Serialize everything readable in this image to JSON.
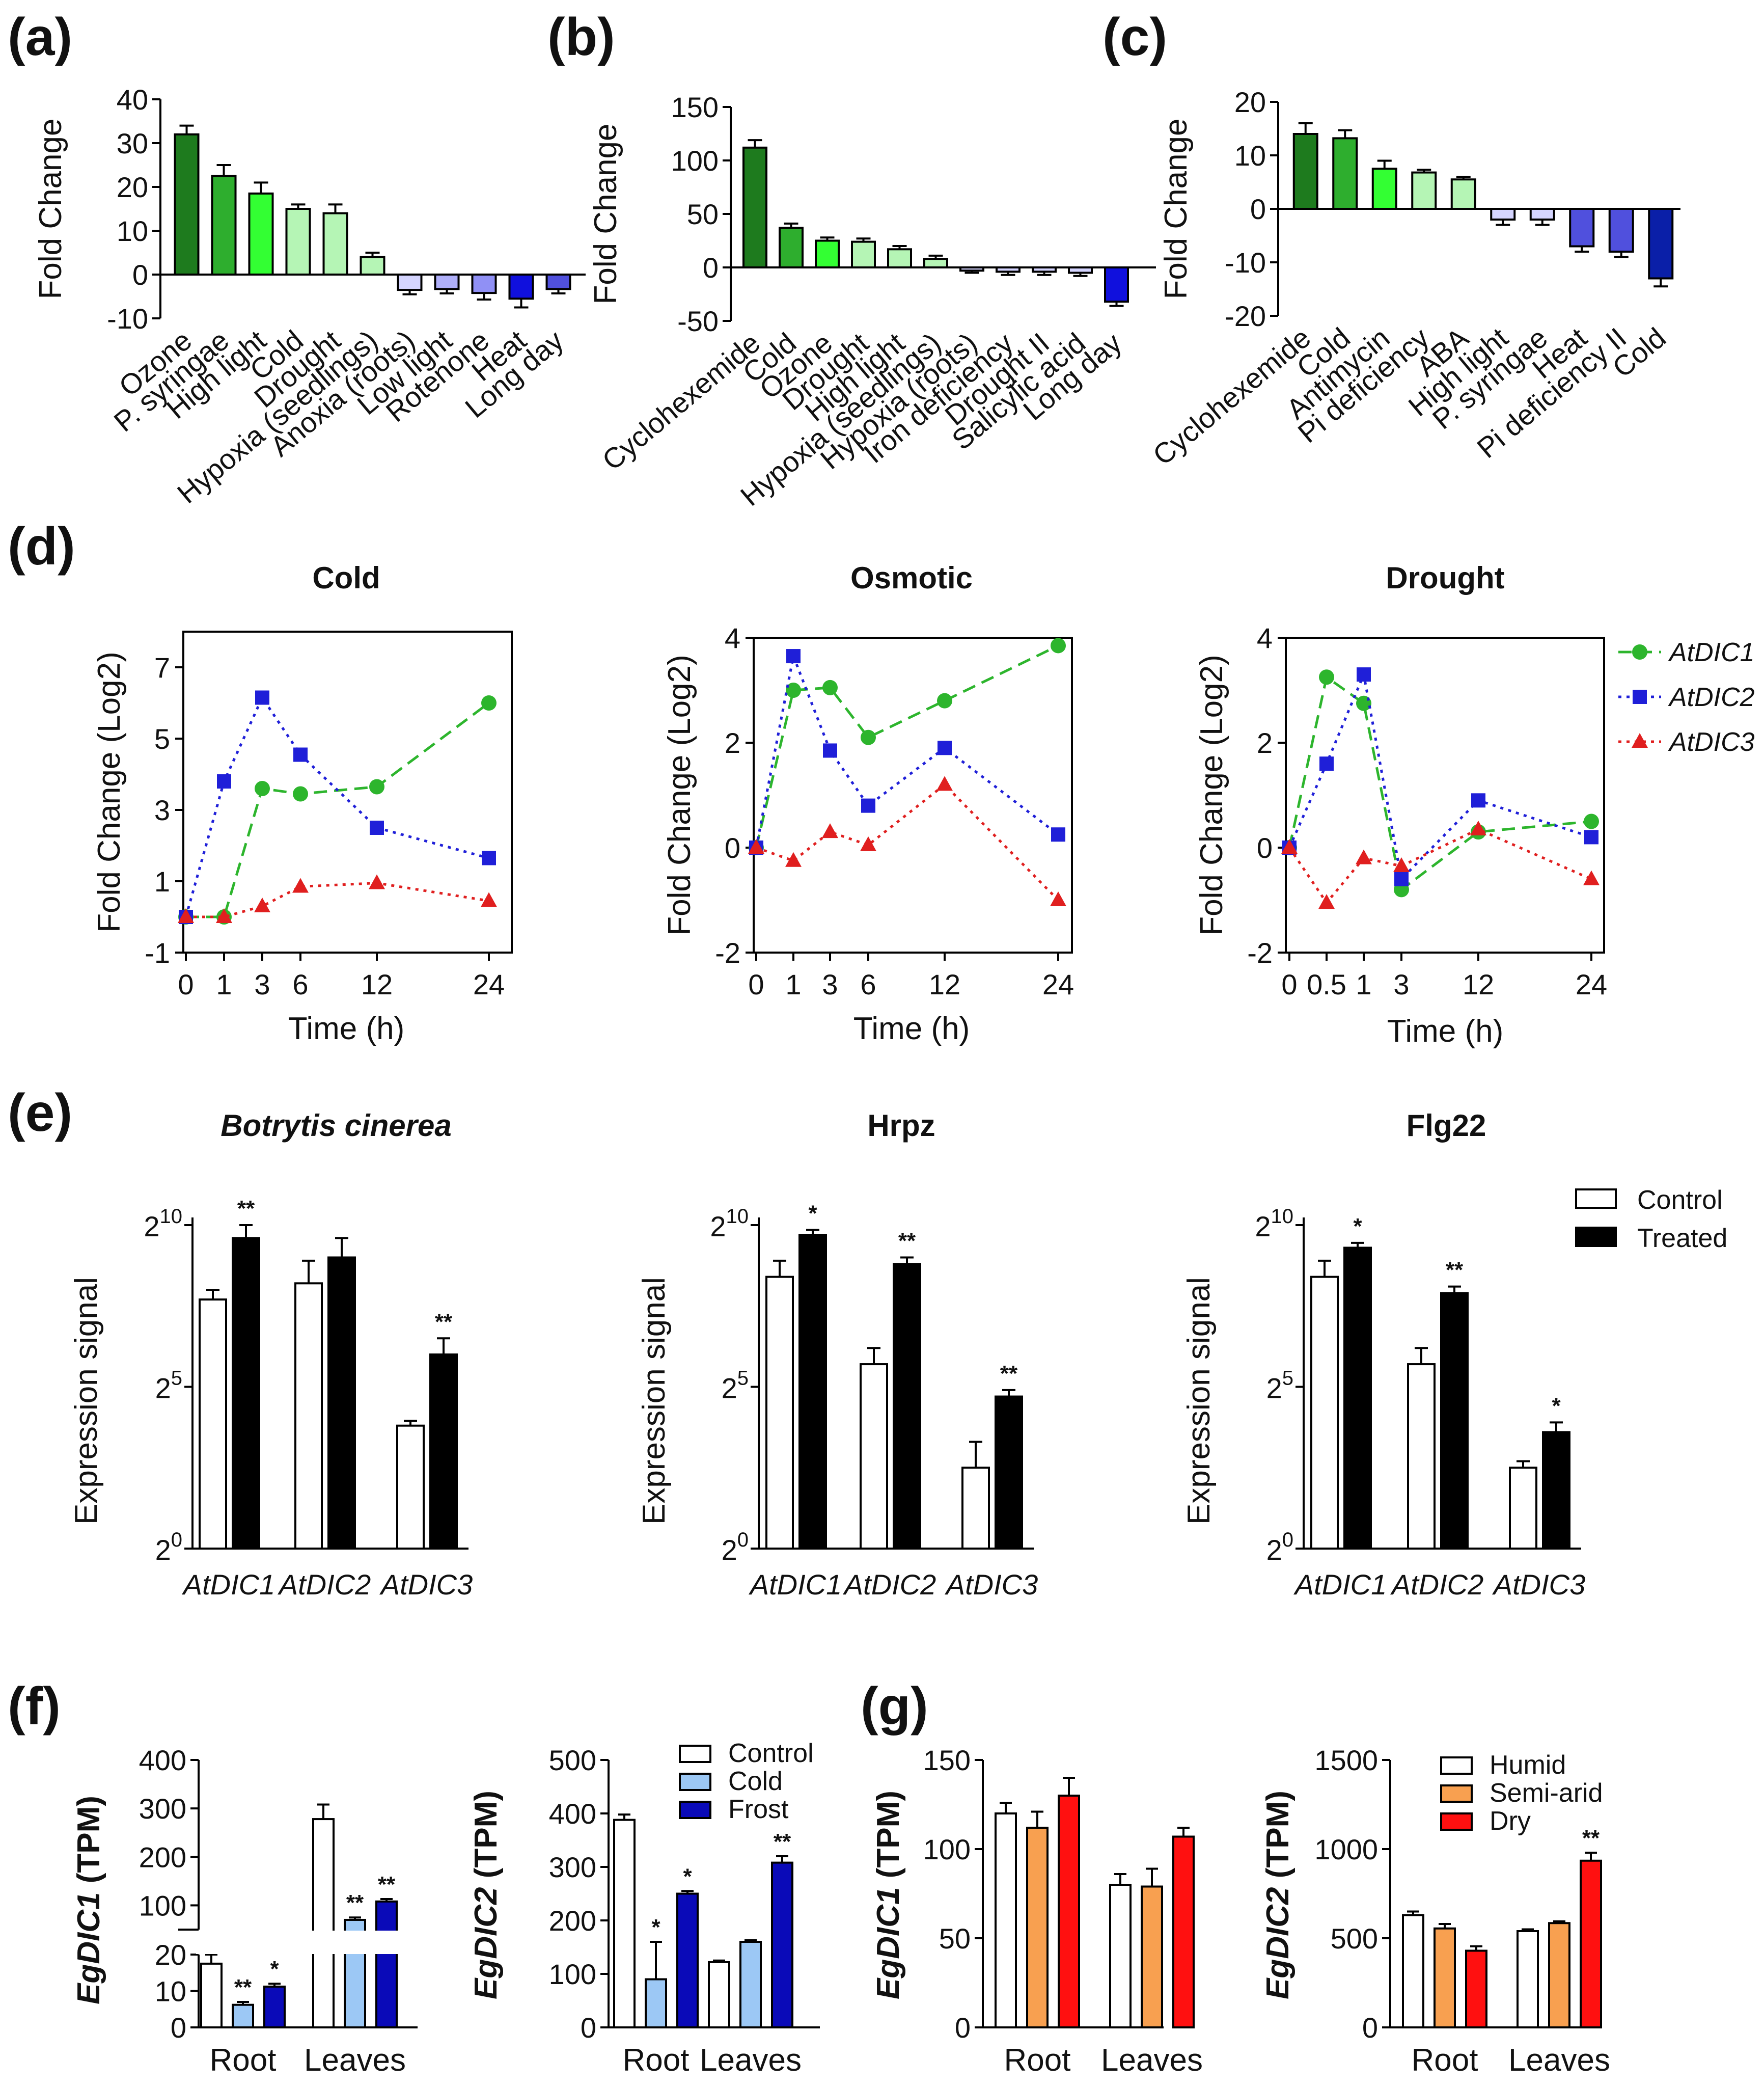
{
  "panel_labels": [
    "(a)",
    "(b)",
    "(c)",
    "(d)",
    "(e)",
    "(f)",
    "(g)"
  ],
  "colors": {
    "dark_green": "#1E7B1E",
    "mid_green": "#2EAE2E",
    "bright_green": "#33FF33",
    "light_green": "#B5F5B5",
    "lavender": "#D5D5FF",
    "light_blue": "#9090F5",
    "mid_blue": "#5050DD",
    "blue": "#1010DD",
    "dark_blue": "#0A1FA8",
    "control_blue": "#9CC8F5",
    "frost_blue": "#0A0AB8",
    "orange": "#F8A050",
    "red": "#FF1010",
    "atdic1_line": "#2DB52D",
    "atdic2_line": "#1F1FD8",
    "atdic3_line": "#E01F1F"
  },
  "chart_data": [
    {
      "id": "a",
      "type": "bar",
      "ylabel": "Fold Change",
      "ylim": [
        -10,
        40
      ],
      "yticks": [
        -10,
        0,
        10,
        20,
        30,
        40
      ],
      "categories": [
        "Ozone",
        "P. syringae",
        "High light",
        "Cold",
        "Drought",
        "Hypoxia (seedlings)",
        "Anoxia (roots)",
        "Low light",
        "Rotenone",
        "Heat",
        "Long day"
      ],
      "values": [
        32,
        22.5,
        18.5,
        15,
        14,
        4,
        -3.5,
        -3.3,
        -4.2,
        -5.5,
        -3.3
      ],
      "errors": [
        2,
        2.5,
        2.5,
        1,
        2,
        1,
        1,
        1,
        1.5,
        2,
        1
      ],
      "bar_colors": [
        "#1E7B1E",
        "#2EAE2E",
        "#33FF33",
        "#B5F5B5",
        "#B5F5B5",
        "#B5F5B5",
        "#D5D5FF",
        "#B0B0FA",
        "#9090F5",
        "#1010DD",
        "#5050DD"
      ]
    },
    {
      "id": "b",
      "type": "bar",
      "ylabel": "Fold Change",
      "ylim": [
        -50,
        150
      ],
      "yticks": [
        -50,
        0,
        50,
        100,
        150
      ],
      "categories": [
        "Cyclohexemide",
        "Cold",
        "Ozone",
        "Drought",
        "High light",
        "Hypoxia (seedlings)",
        "Hypoxia (roots)",
        "Iron deficiency",
        "Drought II",
        "Salicylic acid",
        "Long day"
      ],
      "values": [
        112,
        37,
        25,
        24,
        17,
        8,
        -3,
        -4,
        -4,
        -5,
        -32
      ],
      "errors": [
        7,
        4,
        3,
        3,
        3,
        3,
        2,
        3,
        3,
        3,
        4
      ],
      "bar_colors": [
        "#1E7B1E",
        "#2EAE2E",
        "#33FF33",
        "#B5F5B5",
        "#B5F5B5",
        "#B5F5B5",
        "#D5D5FF",
        "#D5D5FF",
        "#D5D5FF",
        "#D5D5FF",
        "#1010DD"
      ]
    },
    {
      "id": "c",
      "type": "bar",
      "ylabel": "Fold Change",
      "ylim": [
        -20,
        20
      ],
      "yticks": [
        -20,
        -10,
        0,
        10,
        20
      ],
      "categories": [
        "Cyclohexemide",
        "Cold",
        "Antimycin",
        "Pi deficiency",
        "ABA",
        "High light",
        "P. syringae",
        "Heat",
        "Pi deficiency II",
        "Cold"
      ],
      "values": [
        14,
        13.2,
        7.5,
        6.8,
        5.5,
        -2,
        -2,
        -7,
        -8,
        -13
      ],
      "errors": [
        2,
        1.5,
        1.5,
        0.5,
        0.5,
        1,
        1,
        1,
        1,
        1.5
      ],
      "bar_colors": [
        "#1E7B1E",
        "#2EAE2E",
        "#33FF33",
        "#B5F5B5",
        "#B5F5B5",
        "#D5D5FF",
        "#D5D5FF",
        "#5050DD",
        "#5050DD",
        "#0A1FA8"
      ]
    },
    {
      "id": "d1",
      "type": "line",
      "title": "Cold",
      "xlabel": "Time (h)",
      "ylabel": "Fold Change (Log2)",
      "x": [
        0,
        1,
        3,
        6,
        12,
        24
      ],
      "xticks": [
        0,
        1,
        3,
        6,
        12,
        24
      ],
      "ylim": [
        -1,
        8
      ],
      "yticks": [
        -1,
        1,
        3,
        5,
        7
      ],
      "series": [
        {
          "name": "AtDIC1",
          "values": [
            0,
            0,
            3.6,
            3.45,
            3.65,
            6
          ]
        },
        {
          "name": "AtDIC2",
          "values": [
            0,
            3.8,
            6.15,
            4.55,
            2.5,
            1.65
          ]
        },
        {
          "name": "AtDIC3",
          "values": [
            0,
            0,
            0.3,
            0.85,
            0.95,
            0.45
          ]
        }
      ]
    },
    {
      "id": "d2",
      "type": "line",
      "title": "Osmotic",
      "xlabel": "Time (h)",
      "ylabel": "Fold Change (Log2)",
      "x": [
        0,
        1,
        3,
        6,
        12,
        24
      ],
      "xticks": [
        0,
        1,
        3,
        6,
        12,
        24
      ],
      "ylim": [
        -2,
        4
      ],
      "yticks": [
        -2,
        0,
        2,
        4
      ],
      "series": [
        {
          "name": "AtDIC1",
          "values": [
            0,
            3,
            3.05,
            2.1,
            2.8,
            3.85
          ]
        },
        {
          "name": "AtDIC2",
          "values": [
            0,
            3.65,
            1.85,
            0.8,
            1.9,
            0.25
          ]
        },
        {
          "name": "AtDIC3",
          "values": [
            0,
            -0.25,
            0.3,
            0.05,
            1.2,
            -1
          ]
        }
      ]
    },
    {
      "id": "d3",
      "type": "line",
      "title": "Drought",
      "xlabel": "Time (h)",
      "ylabel": "Fold Change (Log2)",
      "x": [
        0,
        0.5,
        1,
        3,
        12,
        24
      ],
      "xticks": [
        0,
        0.5,
        1,
        3,
        12,
        24
      ],
      "ylim": [
        -2,
        4
      ],
      "yticks": [
        -2,
        0,
        2,
        4
      ],
      "series": [
        {
          "name": "AtDIC1",
          "values": [
            0,
            3.25,
            2.75,
            -0.8,
            0.3,
            0.5
          ]
        },
        {
          "name": "AtDIC2",
          "values": [
            0,
            1.6,
            3.3,
            -0.6,
            0.9,
            0.2
          ]
        },
        {
          "name": "AtDIC3",
          "values": [
            0,
            -1.05,
            -0.2,
            -0.35,
            0.35,
            -0.6
          ]
        }
      ]
    },
    {
      "id": "e1",
      "type": "bar",
      "title": "Botrytis cinerea",
      "ylabel": "Expression signal",
      "ylim": [
        0,
        10
      ],
      "yticks_exp": [
        "0",
        "5",
        "10"
      ],
      "ytick_base": "2",
      "categories": [
        "AtDIC1",
        "AtDIC2",
        "AtDIC3"
      ],
      "series": [
        {
          "name": "Control",
          "values": [
            7.7,
            8.2,
            3.8
          ],
          "errors": [
            0.3,
            0.7,
            0.15
          ]
        },
        {
          "name": "Treated",
          "values": [
            9.6,
            9.0,
            6.0
          ],
          "errors": [
            0.4,
            0.6,
            0.5
          ]
        }
      ],
      "significance": [
        {
          "category": "AtDIC1",
          "series": "Treated",
          "label": "**"
        },
        {
          "category": "AtDIC3",
          "series": "Treated",
          "label": "**"
        }
      ]
    },
    {
      "id": "e2",
      "type": "bar",
      "title": "Hrpz",
      "ylabel": "Expression signal",
      "ylim": [
        0,
        10
      ],
      "yticks_exp": [
        "0",
        "5",
        "10"
      ],
      "ytick_base": "2",
      "categories": [
        "AtDIC1",
        "AtDIC2",
        "AtDIC3"
      ],
      "series": [
        {
          "name": "Control",
          "values": [
            8.4,
            5.7,
            2.5
          ],
          "errors": [
            0.5,
            0.5,
            0.8
          ]
        },
        {
          "name": "Treated",
          "values": [
            9.7,
            8.8,
            4.7
          ],
          "errors": [
            0.15,
            0.2,
            0.2
          ]
        }
      ],
      "significance": [
        {
          "category": "AtDIC1",
          "series": "Treated",
          "label": "*"
        },
        {
          "category": "AtDIC2",
          "series": "Treated",
          "label": "**"
        },
        {
          "category": "AtDIC3",
          "series": "Treated",
          "label": "**"
        }
      ]
    },
    {
      "id": "e3",
      "type": "bar",
      "title": "Flg22",
      "ylabel": "Expression signal",
      "ylim": [
        0,
        10
      ],
      "yticks_exp": [
        "0",
        "5",
        "10"
      ],
      "ytick_base": "2",
      "categories": [
        "AtDIC1",
        "AtDIC2",
        "AtDIC3"
      ],
      "series": [
        {
          "name": "Control",
          "values": [
            8.4,
            5.7,
            2.5
          ],
          "errors": [
            0.5,
            0.5,
            0.2
          ]
        },
        {
          "name": "Treated",
          "values": [
            9.3,
            7.9,
            3.6
          ],
          "errors": [
            0.15,
            0.2,
            0.3
          ]
        }
      ],
      "significance": [
        {
          "category": "AtDIC1",
          "series": "Treated",
          "label": "*"
        },
        {
          "category": "AtDIC2",
          "series": "Treated",
          "label": "**"
        },
        {
          "category": "AtDIC3",
          "series": "Treated",
          "label": "*"
        }
      ],
      "legend": [
        "Control",
        "Treated"
      ]
    },
    {
      "id": "f1",
      "type": "bar",
      "ylabel": "EgDIC1 (TPM)",
      "axis_break": true,
      "lower_range": [
        0,
        20
      ],
      "lower_ticks": [
        0,
        10,
        20
      ],
      "upper_range": [
        50,
        400
      ],
      "upper_ticks": [
        100,
        200,
        300,
        400
      ],
      "categories": [
        "Root",
        "Leaves"
      ],
      "series": [
        {
          "name": "Control",
          "values": [
            17.5,
            278
          ],
          "errors": [
            2.5,
            30
          ]
        },
        {
          "name": "Cold",
          "values": [
            6.2,
            70
          ],
          "errors": [
            0.8,
            5
          ]
        },
        {
          "name": "Frost",
          "values": [
            11.2,
            108
          ],
          "errors": [
            0.8,
            5
          ]
        }
      ],
      "significance": [
        {
          "category": "Root",
          "series": "Cold",
          "label": "**"
        },
        {
          "category": "Root",
          "series": "Frost",
          "label": "*"
        },
        {
          "category": "Leaves",
          "series": "Cold",
          "label": "**"
        },
        {
          "category": "Leaves",
          "series": "Frost",
          "label": "**"
        }
      ]
    },
    {
      "id": "f2",
      "type": "bar",
      "ylabel": "EgDIC2 (TPM)",
      "ylim": [
        0,
        500
      ],
      "yticks": [
        0,
        100,
        200,
        300,
        400,
        500
      ],
      "categories": [
        "Root",
        "Leaves"
      ],
      "series": [
        {
          "name": "Control",
          "values": [
            388,
            122
          ],
          "errors": [
            10,
            3
          ]
        },
        {
          "name": "Cold",
          "values": [
            90,
            160
          ],
          "errors": [
            70,
            3
          ]
        },
        {
          "name": "Frost",
          "values": [
            250,
            308
          ],
          "errors": [
            5,
            12
          ]
        }
      ],
      "significance": [
        {
          "category": "Root",
          "series": "Cold",
          "label": "*"
        },
        {
          "category": "Root",
          "series": "Frost",
          "label": "*"
        },
        {
          "category": "Leaves",
          "series": "Frost",
          "label": "**"
        }
      ],
      "legend": [
        "Control",
        "Cold",
        "Frost"
      ]
    },
    {
      "id": "g1",
      "type": "bar",
      "ylabel": "EgDIC1 (TPM)",
      "ylim": [
        0,
        150
      ],
      "yticks": [
        0,
        50,
        100,
        150
      ],
      "categories": [
        "Root",
        "Leaves"
      ],
      "series": [
        {
          "name": "Humid",
          "values": [
            120,
            80
          ],
          "errors": [
            6,
            6
          ]
        },
        {
          "name": "Semi-arid",
          "values": [
            112,
            79
          ],
          "errors": [
            9,
            10
          ]
        },
        {
          "name": "Dry",
          "values": [
            130,
            107
          ],
          "errors": [
            10,
            5
          ]
        }
      ]
    },
    {
      "id": "g2",
      "type": "bar",
      "ylabel": "EgDIC2 (TPM)",
      "ylim": [
        0,
        1500
      ],
      "yticks": [
        0,
        500,
        1000,
        1500
      ],
      "categories": [
        "Root",
        "Leaves"
      ],
      "series": [
        {
          "name": "Humid",
          "values": [
            630,
            540
          ],
          "errors": [
            20,
            10
          ]
        },
        {
          "name": "Semi-arid",
          "values": [
            555,
            585
          ],
          "errors": [
            25,
            10
          ]
        },
        {
          "name": "Dry",
          "values": [
            430,
            935
          ],
          "errors": [
            25,
            45
          ]
        }
      ],
      "significance": [
        {
          "category": "Leaves",
          "series": "Dry",
          "label": "**"
        }
      ],
      "legend": [
        "Humid",
        "Semi-arid",
        "Dry"
      ]
    }
  ]
}
